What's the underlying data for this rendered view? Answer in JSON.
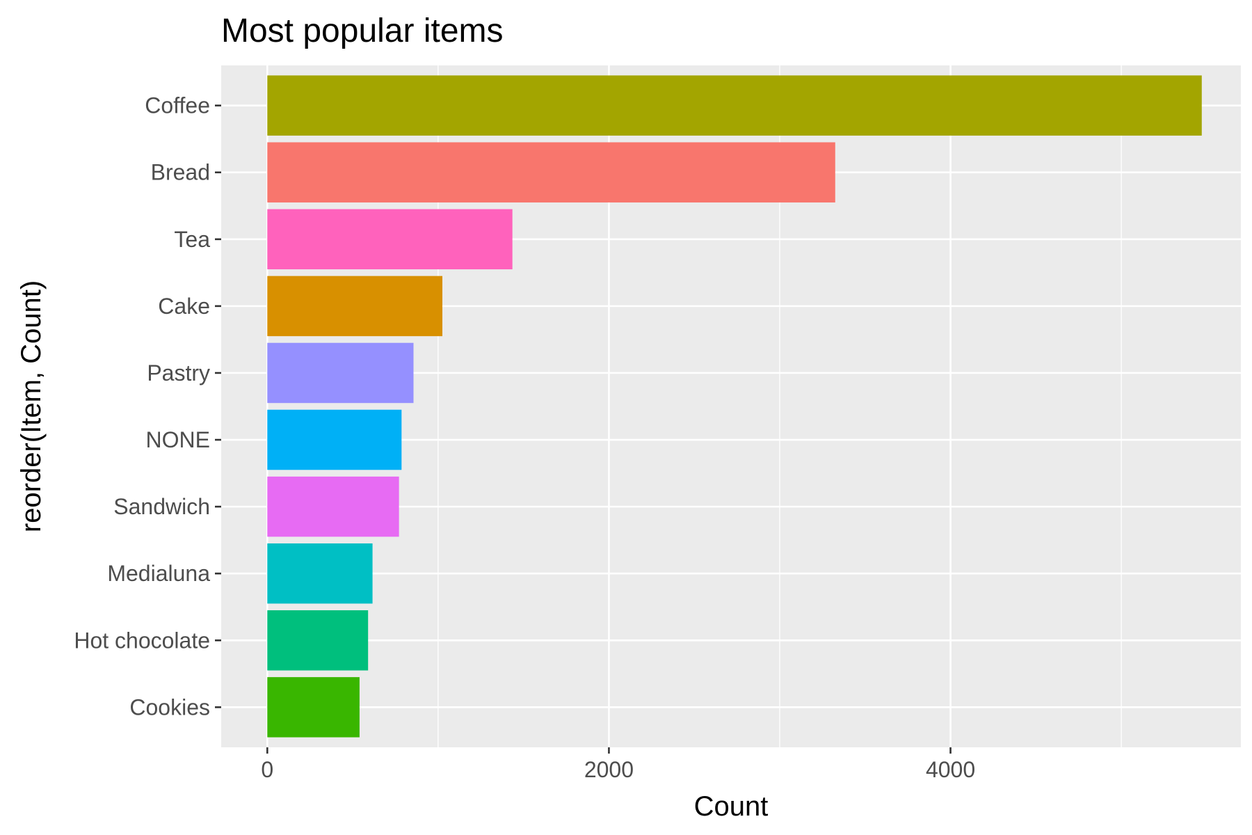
{
  "chart_data": {
    "type": "bar",
    "orientation": "horizontal",
    "title": "Most popular items",
    "xlabel": "Count",
    "ylabel": "reorder(Item, Count)",
    "xlim": [
      -270,
      5700
    ],
    "x_ticks": [
      0,
      2000,
      4000
    ],
    "x_tick_labels": [
      "0",
      "2000",
      "4000"
    ],
    "grid": true,
    "legend": "none",
    "categories": [
      "Coffee",
      "Bread",
      "Tea",
      "Cake",
      "Pastry",
      "NONE",
      "Sandwich",
      "Medialuna",
      "Hot chocolate",
      "Cookies"
    ],
    "values": [
      5471,
      3325,
      1435,
      1025,
      856,
      786,
      771,
      616,
      590,
      540
    ],
    "colors": [
      "#A3A500",
      "#F8766D",
      "#FF62BC",
      "#D89000",
      "#9590FF",
      "#00B0F6",
      "#E76BF3",
      "#00BFC4",
      "#00BF7D",
      "#39B600"
    ]
  }
}
